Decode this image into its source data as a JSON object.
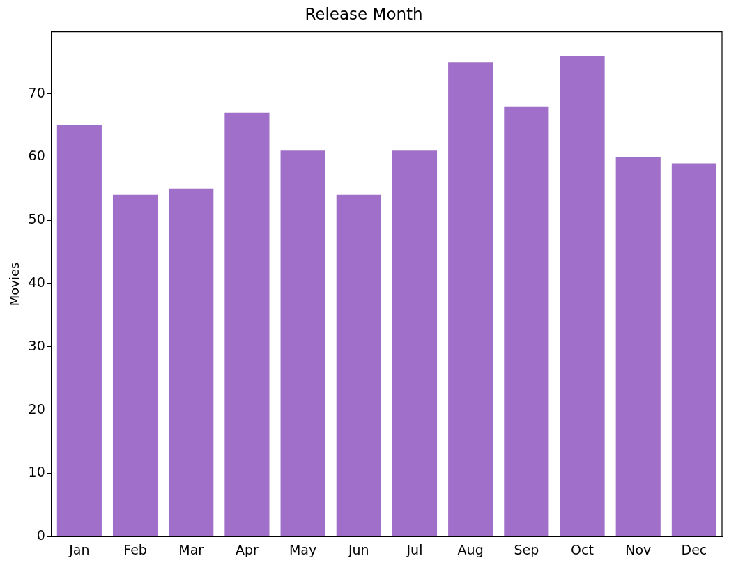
{
  "chart_data": {
    "type": "bar",
    "title": "Release Month",
    "ylabel": "Movies",
    "categories": [
      "Jan",
      "Feb",
      "Mar",
      "Apr",
      "May",
      "Jun",
      "Jul",
      "Aug",
      "Sep",
      "Oct",
      "Nov",
      "Dec"
    ],
    "values": [
      65,
      54,
      55,
      67,
      61,
      54,
      61,
      75,
      68,
      76,
      60,
      59
    ],
    "color": "#9f6fc9",
    "ylim": [
      0,
      79.8
    ],
    "yticks": [
      0,
      10,
      20,
      30,
      40,
      50,
      60,
      70
    ],
    "grid": false,
    "legend": false
  }
}
